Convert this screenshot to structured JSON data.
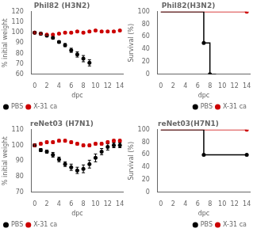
{
  "chart_data": [
    {
      "type": "scatter",
      "title": "Phil82 (H3N2)",
      "x_label": "dpc",
      "y_label": "% initial weight",
      "xlim": [
        -0.5,
        14.5
      ],
      "xticks": [
        0,
        2,
        4,
        6,
        8,
        10,
        12,
        14
      ],
      "ylim": [
        60,
        120
      ],
      "yticks": [
        60,
        70,
        80,
        90,
        100,
        110,
        120
      ],
      "grid": false,
      "legend": "lower left",
      "series": [
        {
          "name": "PBS",
          "color": "#000000",
          "marker": "circle",
          "x": [
            0,
            1,
            2,
            3,
            4,
            5,
            6,
            7,
            8,
            9
          ],
          "values": [
            100,
            99,
            97,
            95,
            91,
            88,
            83,
            79,
            75,
            71
          ],
          "errors": [
            1,
            1,
            1,
            1,
            1,
            1.5,
            2,
            2.5,
            3,
            3
          ]
        },
        {
          "name": "X-31 ca",
          "color": "#cc0000",
          "marker": "circle",
          "x": [
            0,
            1,
            2,
            3,
            4,
            5,
            6,
            7,
            8,
            9,
            10,
            11,
            12,
            13,
            14
          ],
          "values": [
            100,
            99,
            98,
            98,
            99,
            100,
            100,
            101,
            100,
            101,
            102,
            101,
            101,
            101,
            102
          ],
          "errors": [
            0.8,
            0.8,
            0.8,
            0.8,
            0.8,
            0.8,
            0.8,
            0.8,
            0.8,
            0.8,
            0.8,
            0.8,
            0.8,
            0.8,
            0.8
          ]
        }
      ]
    },
    {
      "type": "line",
      "title": "Phil82(H3N2)",
      "x_label": "dpc",
      "y_label": "Survival (%)",
      "xlim": [
        -0.5,
        14.5
      ],
      "xticks": [
        0,
        2,
        4,
        6,
        8,
        10,
        12,
        14
      ],
      "ylim": [
        0,
        100
      ],
      "yticks": [
        0,
        20,
        40,
        60,
        80,
        100
      ],
      "grid": false,
      "legend": "lower right",
      "series": [
        {
          "name": "PBS",
          "color": "#000000",
          "type": "line",
          "marker": "none",
          "x": [
            0,
            7,
            7,
            8,
            8,
            9
          ],
          "values": [
            100,
            100,
            50,
            50,
            0,
            0
          ]
        },
        {
          "color": "#000000",
          "type": "scatter",
          "marker": "circle",
          "line_style": "none",
          "x": [
            7,
            8
          ],
          "values": [
            50,
            0
          ]
        },
        {
          "name": "X-31 ca",
          "color": "#cc0000",
          "type": "line",
          "marker": "none",
          "x": [
            0,
            14
          ],
          "values": [
            100,
            100
          ]
        },
        {
          "color": "#cc0000",
          "type": "scatter",
          "marker": "circle",
          "line_style": "none",
          "x": [
            14
          ],
          "values": [
            100
          ]
        }
      ]
    },
    {
      "type": "scatter",
      "title": "reNet03 (H7N1)",
      "x_label": "dpc",
      "y_label": "% initial weight",
      "xlim": [
        -0.5,
        14.5
      ],
      "xticks": [
        0,
        2,
        4,
        6,
        8,
        10,
        12,
        14
      ],
      "ylim": [
        70,
        110
      ],
      "yticks": [
        70,
        80,
        90,
        100,
        110
      ],
      "grid": false,
      "legend": "lower left",
      "series": [
        {
          "name": "PBS",
          "color": "#000000",
          "marker": "circle",
          "x": [
            0,
            1,
            2,
            3,
            4,
            5,
            6,
            7,
            8,
            9,
            10,
            11,
            12,
            13,
            14
          ],
          "values": [
            100,
            97,
            96,
            94,
            91,
            88,
            86,
            84,
            85,
            88,
            92,
            96,
            99,
            100,
            100
          ],
          "errors": [
            1,
            1,
            1,
            1.5,
            1.5,
            1.5,
            2,
            2,
            2.5,
            2.5,
            2.5,
            2,
            2,
            1.5,
            1.5
          ]
        },
        {
          "name": "X-31 ca",
          "color": "#cc0000",
          "marker": "circle",
          "x": [
            0,
            1,
            2,
            3,
            4,
            5,
            6,
            7,
            8,
            9,
            10,
            11,
            12,
            13,
            14
          ],
          "values": [
            100,
            101,
            102,
            102,
            103,
            103,
            102,
            101,
            100,
            100,
            101,
            101,
            102,
            103,
            103
          ],
          "errors": [
            0.8,
            0.8,
            0.8,
            0.8,
            0.8,
            0.8,
            0.8,
            0.8,
            0.8,
            0.8,
            0.8,
            0.8,
            0.8,
            0.8,
            0.8
          ]
        }
      ]
    },
    {
      "type": "line",
      "title": "reNet03(H7N1)",
      "x_label": "dpc",
      "y_label": "Survival (%)",
      "xlim": [
        -0.5,
        14.5
      ],
      "xticks": [
        0,
        2,
        4,
        6,
        8,
        10,
        12,
        14
      ],
      "ylim": [
        0,
        100
      ],
      "yticks": [
        0,
        20,
        40,
        60,
        80,
        100
      ],
      "grid": false,
      "legend": "lower right",
      "series": [
        {
          "name": "PBS",
          "color": "#000000",
          "type": "line",
          "marker": "none",
          "x": [
            0,
            7,
            7,
            14
          ],
          "values": [
            100,
            100,
            60,
            60
          ]
        },
        {
          "color": "#000000",
          "type": "scatter",
          "marker": "circle",
          "line_style": "none",
          "x": [
            7,
            14
          ],
          "values": [
            60,
            60
          ]
        },
        {
          "name": "X-31 ca",
          "color": "#cc0000",
          "type": "line",
          "marker": "none",
          "x": [
            0,
            14
          ],
          "values": [
            100,
            100
          ]
        },
        {
          "color": "#cc0000",
          "type": "scatter",
          "marker": "circle",
          "line_style": "none",
          "x": [
            14
          ],
          "values": [
            100
          ]
        }
      ]
    }
  ]
}
